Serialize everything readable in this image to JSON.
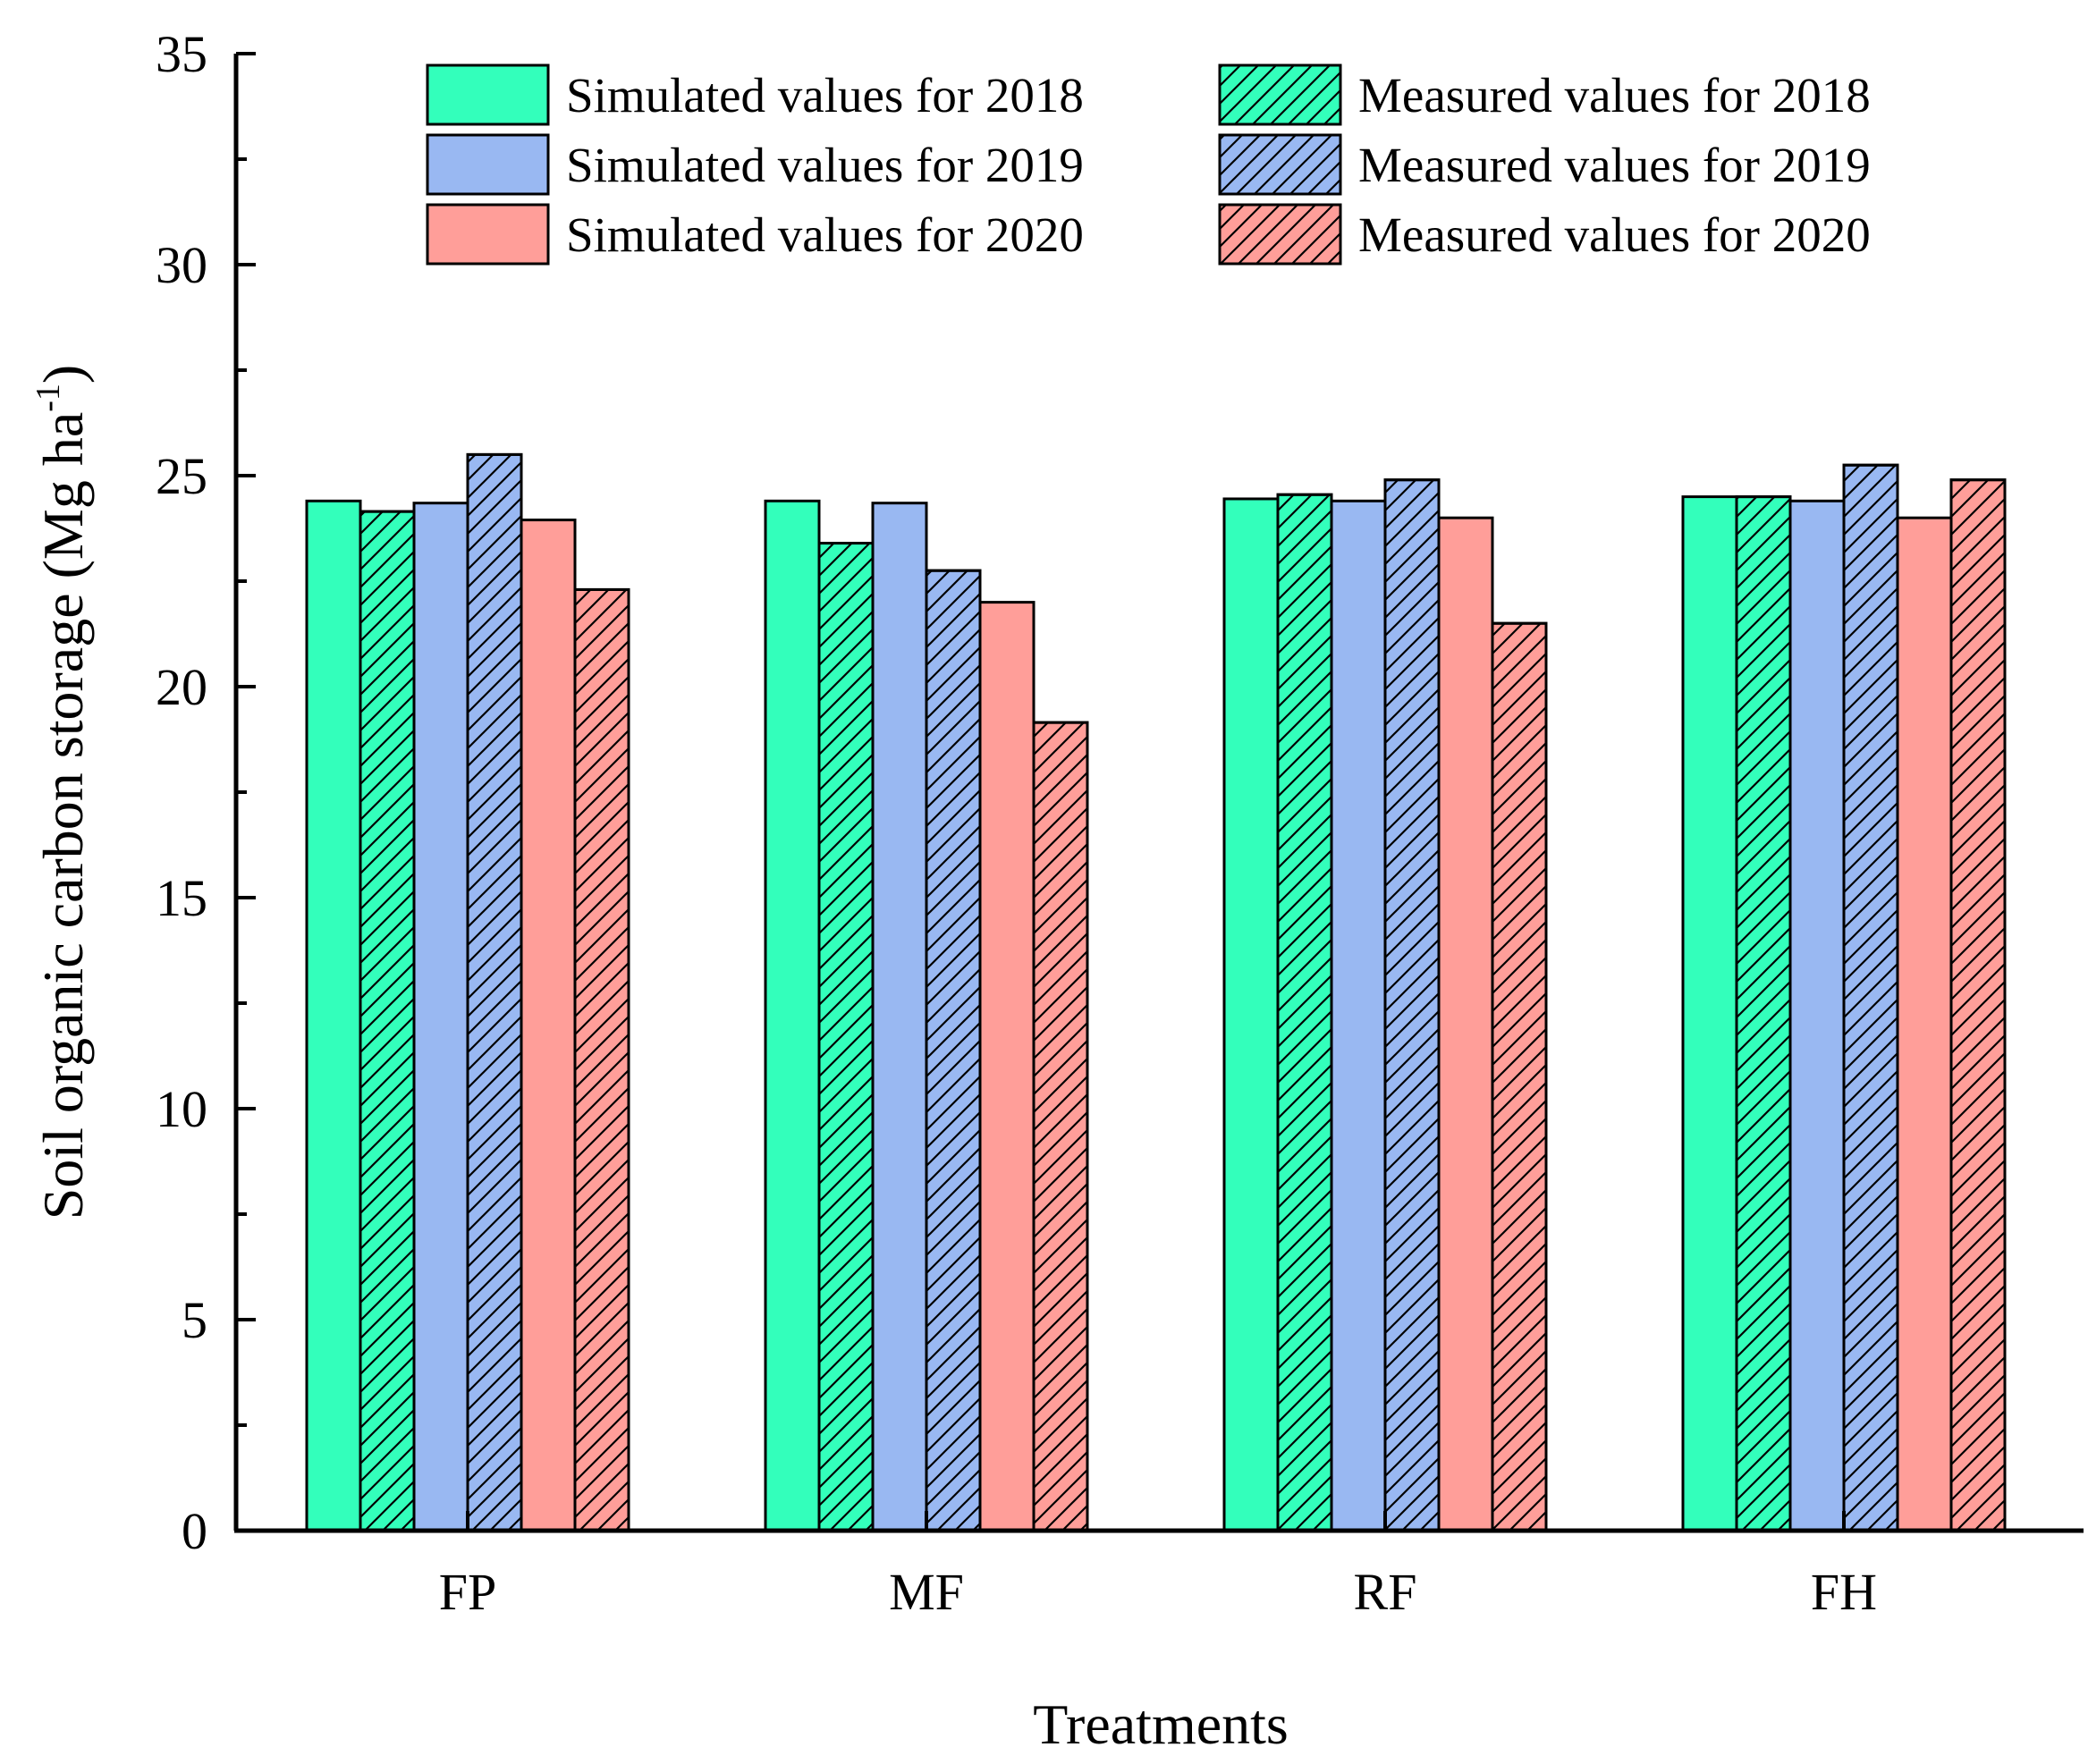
{
  "chart_data": {
    "type": "bar",
    "title": "",
    "xlabel": "Treatments",
    "ylabel": {
      "main": "Soil organic carbon storage (Mg ha",
      "superscript": "-1",
      "close": ")"
    },
    "ylim": [
      0,
      35
    ],
    "yticks": [
      "0",
      "5",
      "10",
      "15",
      "20",
      "25",
      "30",
      "35"
    ],
    "categories": [
      "FP",
      "MF",
      "RF",
      "FH"
    ],
    "legend_position": "top-right",
    "series": [
      {
        "name": "Simulated values for 2018",
        "color": "#33FFBB",
        "hatched": false,
        "values": [
          24.4,
          24.4,
          24.45,
          24.5
        ]
      },
      {
        "name": "Measured values for 2018",
        "color": "#33FFBB",
        "hatched": true,
        "values": [
          24.15,
          23.4,
          24.55,
          24.5
        ]
      },
      {
        "name": "Simulated values for 2019",
        "color": "#99B8F2",
        "hatched": false,
        "values": [
          24.35,
          24.35,
          24.4,
          24.4
        ]
      },
      {
        "name": "Measured values for 2019",
        "color": "#99B8F2",
        "hatched": true,
        "values": [
          25.5,
          22.75,
          24.9,
          25.25
        ]
      },
      {
        "name": "Simulated values for 2020",
        "color": "#FF9E99",
        "hatched": false,
        "values": [
          23.95,
          22.0,
          24.0,
          24.0
        ]
      },
      {
        "name": "Measured values for 2020",
        "color": "#FF9E99",
        "hatched": true,
        "values": [
          22.3,
          19.15,
          21.5,
          24.9
        ]
      }
    ]
  }
}
